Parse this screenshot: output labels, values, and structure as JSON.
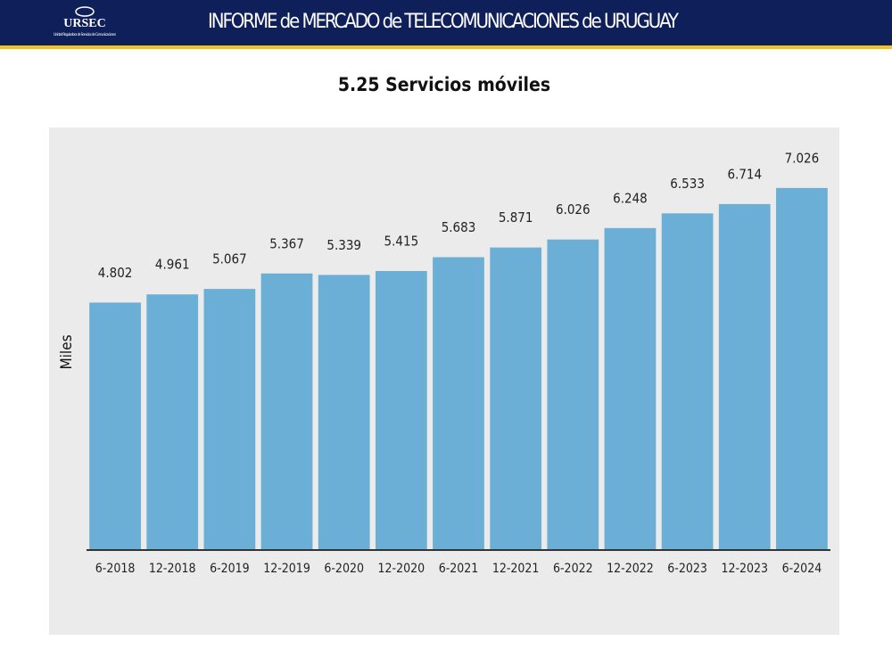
{
  "header": {
    "logo": "URSEC",
    "logo_subtitle": "Unidad Reguladora de Servicios de Comunicaciones",
    "title": "INFORME de MERCADO de TELECOMUNICACIONES de URUGUAY"
  },
  "chart_data": {
    "type": "bar",
    "title": "5.25 Servicios móviles",
    "y_label": "Miles",
    "categories": [
      "6-2018",
      "12-2018",
      "6-2019",
      "12-2019",
      "6-2020",
      "12-2020",
      "6-2021",
      "12-2021",
      "6-2022",
      "12-2022",
      "6-2023",
      "12-2023",
      "6-2024"
    ],
    "values": [
      4802,
      4961,
      5067,
      5367,
      5339,
      5415,
      5683,
      5871,
      6026,
      6248,
      6533,
      6714,
      7026
    ],
    "value_labels": [
      "4.802",
      "4.961",
      "5.067",
      "5.367",
      "5.339",
      "5.415",
      "5.683",
      "5.871",
      "6.026",
      "6.248",
      "6.533",
      "6.714",
      "7.026"
    ],
    "color": "#6baed6",
    "ylim": [
      0,
      8200
    ]
  }
}
